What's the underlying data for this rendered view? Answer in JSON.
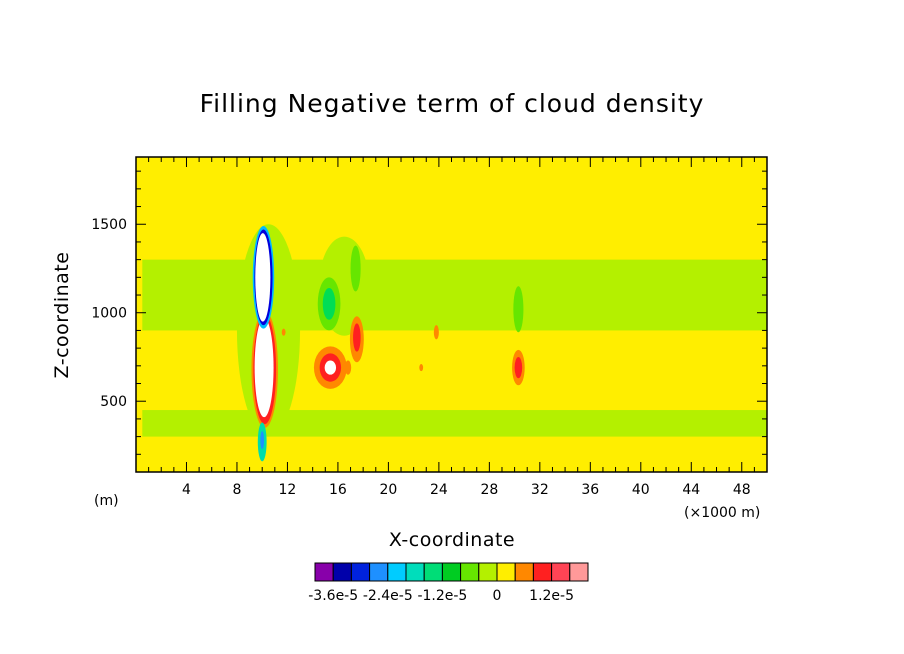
{
  "chart_data": {
    "type": "heatmap",
    "title": "Filling Negative term of cloud density",
    "xlabel": "X-coordinate",
    "ylabel": "Z-coordinate",
    "x_unit_left": "(m)",
    "x_unit_right": "(×1000 m)",
    "xlim": [
      0,
      50
    ],
    "ylim": [
      100,
      1880
    ],
    "x_ticks": [
      4,
      8,
      12,
      16,
      20,
      24,
      28,
      32,
      36,
      40,
      44,
      48
    ],
    "x_tick_labels": [
      "4",
      "8",
      "12",
      "16",
      "20",
      "24",
      "28",
      "32",
      "36",
      "40",
      "44",
      "48"
    ],
    "y_ticks": [
      500,
      1000,
      1500
    ],
    "y_tick_labels": [
      "500",
      "1000",
      "1500"
    ],
    "background_color": "#ffee00",
    "regions": [
      {
        "kind": "band",
        "color": "#b4f000",
        "x": [
          0.5,
          50
        ],
        "y": [
          300,
          450
        ],
        "level": "-2.0e-6"
      },
      {
        "kind": "band",
        "color": "#b4f000",
        "x": [
          0.5,
          50
        ],
        "y": [
          900,
          1300
        ],
        "level": "-2.0e-6"
      },
      {
        "kind": "blob",
        "color": "#b4f000",
        "cx": 10.5,
        "cy": 900,
        "rx": 2.5,
        "ry": 600,
        "level": "-2.0e-6"
      },
      {
        "kind": "blob",
        "color": "#b4f000",
        "cx": 16.5,
        "cy": 1150,
        "rx": 2.0,
        "ry": 280,
        "level": "-2.0e-6"
      },
      {
        "kind": "blob",
        "color": "#66e600",
        "cx": 15.3,
        "cy": 1050,
        "rx": 0.9,
        "ry": 150,
        "level": "-6.0e-6"
      },
      {
        "kind": "blob",
        "color": "#00dd55",
        "cx": 15.3,
        "cy": 1050,
        "rx": 0.5,
        "ry": 90,
        "level": "-1.0e-5"
      },
      {
        "kind": "blob",
        "color": "#66e600",
        "cx": 17.4,
        "cy": 1250,
        "rx": 0.4,
        "ry": 130,
        "level": "-6.0e-6"
      },
      {
        "kind": "blob",
        "color": "#66e600",
        "cx": 30.3,
        "cy": 1020,
        "rx": 0.4,
        "ry": 130,
        "level": "-6.0e-6"
      },
      {
        "kind": "blob",
        "color": "#ff8800",
        "cx": 15.4,
        "cy": 690,
        "rx": 1.3,
        "ry": 120,
        "level": "4.0e-6"
      },
      {
        "kind": "blob",
        "color": "#ff2020",
        "cx": 15.4,
        "cy": 690,
        "rx": 0.85,
        "ry": 80,
        "level": "8.0e-6"
      },
      {
        "kind": "blob",
        "color": "#ffffff",
        "cx": 15.4,
        "cy": 690,
        "rx": 0.45,
        "ry": 40,
        "level": "above 1.6e-5"
      },
      {
        "kind": "blob",
        "color": "#ff8800",
        "cx": 17.5,
        "cy": 850,
        "rx": 0.55,
        "ry": 130,
        "level": "4.0e-6"
      },
      {
        "kind": "blob",
        "color": "#ff2020",
        "cx": 17.5,
        "cy": 860,
        "rx": 0.3,
        "ry": 80,
        "level": "8.0e-6"
      },
      {
        "kind": "blob",
        "color": "#ff8800",
        "cx": 16.8,
        "cy": 690,
        "rx": 0.25,
        "ry": 40,
        "level": "4.0e-6"
      },
      {
        "kind": "blob",
        "color": "#ff8800",
        "cx": 30.3,
        "cy": 690,
        "rx": 0.5,
        "ry": 100,
        "level": "4.0e-6"
      },
      {
        "kind": "blob",
        "color": "#ff2020",
        "cx": 30.3,
        "cy": 690,
        "rx": 0.3,
        "ry": 60,
        "level": "8.0e-6"
      },
      {
        "kind": "blob",
        "color": "#ff8800",
        "cx": 23.8,
        "cy": 890,
        "rx": 0.2,
        "ry": 40,
        "level": "4.0e-6"
      },
      {
        "kind": "blob",
        "color": "#ff8800",
        "cx": 11.7,
        "cy": 890,
        "rx": 0.15,
        "ry": 20,
        "level": "4.0e-6"
      },
      {
        "kind": "blob",
        "color": "#ff8800",
        "cx": 22.6,
        "cy": 690,
        "rx": 0.15,
        "ry": 20,
        "level": "4.0e-6"
      },
      {
        "kind": "blob",
        "color": "#ff8800",
        "cx": 10.2,
        "cy": 680,
        "rx": 1.05,
        "ry": 330,
        "level": "4.0e-6"
      },
      {
        "kind": "blob",
        "color": "#ff2020",
        "cx": 10.2,
        "cy": 680,
        "rx": 0.9,
        "ry": 310,
        "level": "8.0e-6"
      },
      {
        "kind": "blob",
        "color": "#ffffff",
        "cx": 10.15,
        "cy": 690,
        "rx": 0.75,
        "ry": 280,
        "level": "above 1.6e-5"
      },
      {
        "kind": "blob",
        "color": "#00bbff",
        "cx": 10.1,
        "cy": 1200,
        "rx": 0.85,
        "ry": 290,
        "level": "-1.8e-5"
      },
      {
        "kind": "blob",
        "color": "#0000dd",
        "cx": 10.1,
        "cy": 1200,
        "rx": 0.72,
        "ry": 270,
        "level": "-3.0e-5"
      },
      {
        "kind": "blob",
        "color": "#ffffff",
        "cx": 10.05,
        "cy": 1200,
        "rx": 0.6,
        "ry": 250,
        "level": "below -3.6e-5"
      },
      {
        "kind": "blob",
        "color": "#00ddaa",
        "cx": 10.0,
        "cy": 270,
        "rx": 0.35,
        "ry": 110,
        "level": "-1.4e-5"
      },
      {
        "kind": "blob",
        "color": "#1e90ff",
        "cx": 10.0,
        "cy": 280,
        "rx": 0.15,
        "ry": 50,
        "level": "-2.6e-5"
      }
    ],
    "colorbar": {
      "colors": [
        "#8800aa",
        "#0000aa",
        "#0022dd",
        "#1e90ff",
        "#00ccff",
        "#00ddbb",
        "#00dd77",
        "#00cc22",
        "#66e600",
        "#b4f000",
        "#ffee00",
        "#ff8800",
        "#ff2020",
        "#ff4455",
        "#ff9999"
      ],
      "labels": [
        "-3.6e-5",
        "-2.4e-5",
        "-1.2e-5",
        "0",
        "1.2e-5"
      ]
    }
  }
}
